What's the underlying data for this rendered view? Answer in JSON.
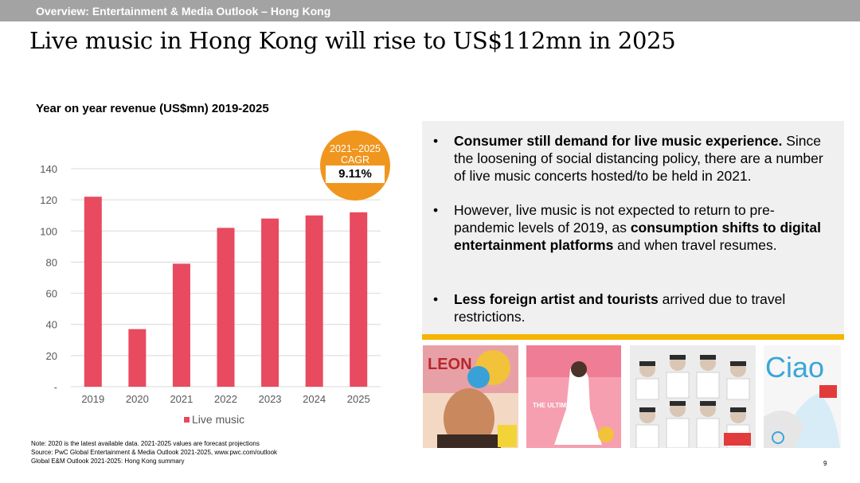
{
  "header": {
    "section": "Overview: Entertainment & Media Outlook – Hong Kong",
    "title": "Live music in Hong Kong will rise to US$112mn in 2025"
  },
  "chart_data": {
    "type": "bar",
    "title": "Year on year revenue (US$mn) 2019-2025",
    "categories": [
      "2019",
      "2020",
      "2021",
      "2022",
      "2023",
      "2024",
      "2025"
    ],
    "series": [
      {
        "name": "Live music",
        "values": [
          122,
          37,
          79,
          102,
          108,
          110,
          112
        ],
        "color": "#e84a5f"
      }
    ],
    "y_ticks": [
      "-",
      "20",
      "40",
      "60",
      "80",
      "100",
      "120",
      "140"
    ],
    "ylim": [
      0,
      140
    ],
    "grid": true,
    "legend_placement": "bottom"
  },
  "cagr": {
    "period": "2021--2025",
    "label": "CAGR",
    "value": "9.11%",
    "color": "#f0961e"
  },
  "bullets": [
    {
      "bold": "Consumer still demand for live music experience.",
      "text": " Since the loosening of social distancing policy, there are a number of live music concerts hosted/to be held in 2021."
    },
    {
      "text_before": "However, live music is not expected to return to pre-pandemic levels of 2019, as ",
      "bold": "consumption shifts to digital entertainment platforms",
      "text_after": " and when travel resumes."
    },
    {
      "bold": "Less foreign artist and tourists",
      "text_after": " arrived due to travel restrictions."
    }
  ],
  "posters": [
    {
      "name": "leon-concert-poster",
      "title_text": "LEON",
      "accent": "#e0484e"
    },
    {
      "name": "ultimate-concert-poster",
      "title_text": "THE ULTIMATE",
      "accent": "#ee6f86"
    },
    {
      "name": "group-concert-poster",
      "title_text": "",
      "accent": "#dcdcdc"
    },
    {
      "name": "ciao-concert-poster",
      "title_text": "Ciao",
      "accent": "#3aa6d8"
    }
  ],
  "footer": {
    "note": "Note: 2020 is the latest available data. 2021-2025 values are forecast projections",
    "source": "Source: PwC Global Entertainment & Media Outlook 2021-2025, www.pwc.com/outlook",
    "doc": "Global E&M Outlook 2021-2025: Hong Kong summary",
    "page": "9"
  }
}
